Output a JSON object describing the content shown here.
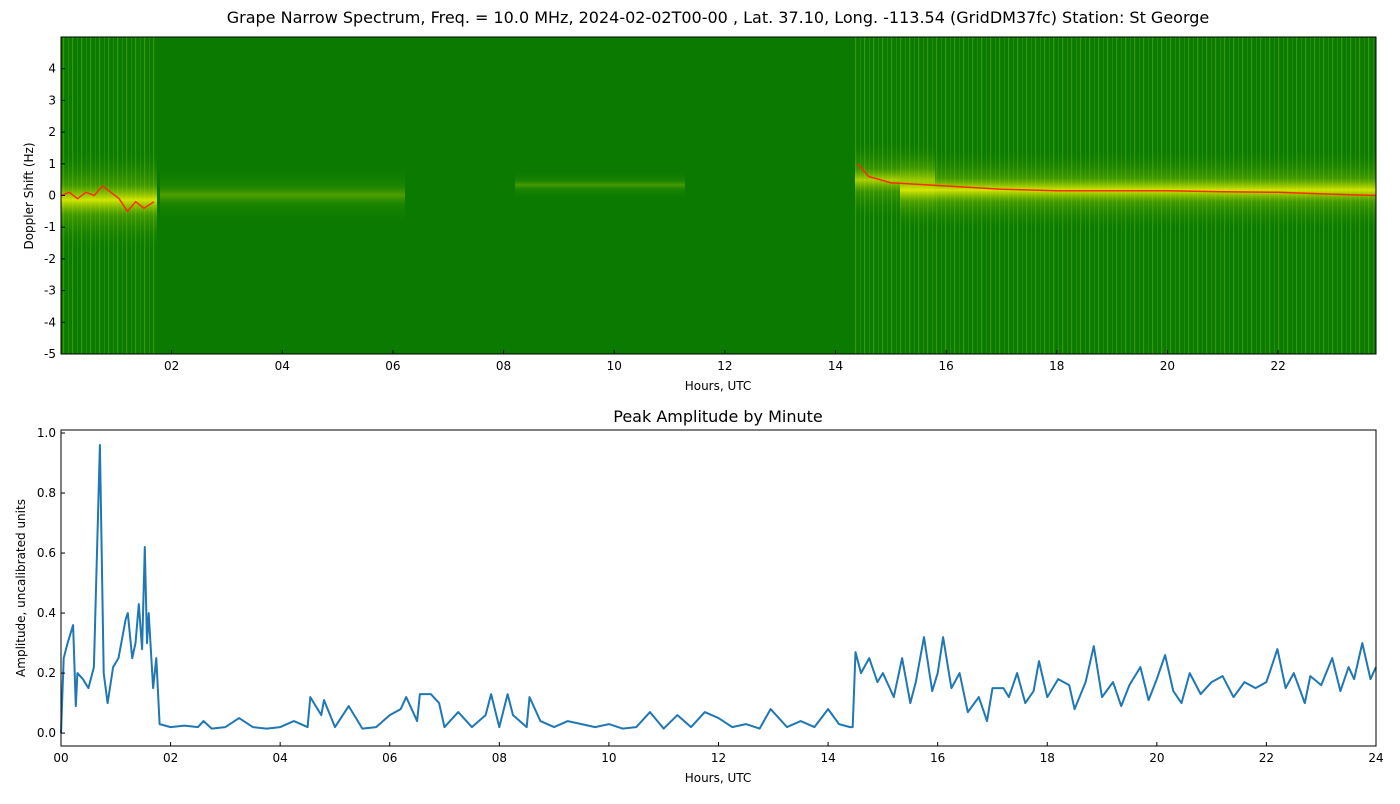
{
  "chart_data": [
    {
      "type": "spectrogram",
      "title": "Grape Narrow Spectrum, Freq. = 10.0 MHz, 2024-02-02T00-00 , Lat.  37.10, Long. -113.54 (GridDM37fc) Station: St George",
      "xlabel": "Hours, UTC",
      "ylabel": "Doppler Shift (Hz)",
      "xlim": [
        0,
        23.77
      ],
      "ylim": [
        -5,
        5
      ],
      "xticks": [
        {
          "value": 2,
          "label": "02"
        },
        {
          "value": 4,
          "label": "04"
        },
        {
          "value": 6,
          "label": "06"
        },
        {
          "value": 8,
          "label": "08"
        },
        {
          "value": 10,
          "label": "10"
        },
        {
          "value": 12,
          "label": "12"
        },
        {
          "value": 14,
          "label": "14"
        },
        {
          "value": 16,
          "label": "16"
        },
        {
          "value": 18,
          "label": "18"
        },
        {
          "value": 20,
          "label": "20"
        },
        {
          "value": 22,
          "label": "22"
        }
      ],
      "yticks": [
        -5,
        -4,
        -3,
        -2,
        -1,
        0,
        1,
        2,
        3,
        4
      ],
      "color": "#ff2a00",
      "x": [
        0.0,
        0.15,
        0.3,
        0.45,
        0.6,
        0.75,
        0.9,
        1.05,
        1.2,
        1.35,
        1.5,
        1.68,
        14.4,
        14.6,
        15.0,
        15.5,
        16.0,
        16.5,
        17.0,
        18.0,
        19.0,
        20.0,
        21.0,
        22.0,
        22.8,
        23.77
      ],
      "values": [
        0.0,
        0.1,
        -0.1,
        0.1,
        0.0,
        0.3,
        0.1,
        -0.1,
        -0.5,
        -0.2,
        -0.4,
        -0.2,
        1.0,
        0.6,
        0.4,
        0.35,
        0.3,
        0.25,
        0.2,
        0.15,
        0.15,
        0.15,
        0.12,
        0.1,
        0.05,
        0.0
      ]
    },
    {
      "type": "line",
      "title": "Peak Amplitude by Minute",
      "xlabel": "Hours, UTC",
      "ylabel": "Amplitude, uncalibrated units",
      "xlim": [
        0,
        24
      ],
      "ylim": [
        -0.043,
        1.01
      ],
      "xticks": [
        {
          "value": 0,
          "label": "00"
        },
        {
          "value": 2,
          "label": "02"
        },
        {
          "value": 4,
          "label": "04"
        },
        {
          "value": 6,
          "label": "06"
        },
        {
          "value": 8,
          "label": "08"
        },
        {
          "value": 10,
          "label": "10"
        },
        {
          "value": 12,
          "label": "12"
        },
        {
          "value": 14,
          "label": "14"
        },
        {
          "value": 16,
          "label": "16"
        },
        {
          "value": 18,
          "label": "18"
        },
        {
          "value": 20,
          "label": "20"
        },
        {
          "value": 22,
          "label": "22"
        },
        {
          "value": 24,
          "label": "24"
        }
      ],
      "yticks": [
        {
          "value": 0,
          "label": "0.0"
        },
        0.2,
        0.4,
        0.6,
        0.8,
        {
          "value": 1,
          "label": "1.0"
        }
      ],
      "color": "#1f77b4",
      "x": [
        0,
        0.05,
        0.12,
        0.22,
        0.27,
        0.3,
        0.4,
        0.5,
        0.6,
        0.71,
        0.78,
        0.85,
        0.95,
        1.05,
        1.18,
        1.22,
        1.3,
        1.36,
        1.42,
        1.48,
        1.53,
        1.57,
        1.6,
        1.68,
        1.74,
        1.8,
        2.0,
        2.25,
        2.5,
        2.6,
        2.75,
        3.0,
        3.25,
        3.5,
        3.75,
        4.0,
        4.25,
        4.5,
        4.55,
        4.75,
        4.8,
        5.0,
        5.25,
        5.5,
        5.75,
        6.0,
        6.2,
        6.3,
        6.5,
        6.55,
        6.75,
        6.9,
        7.0,
        7.25,
        7.5,
        7.75,
        7.85,
        8.0,
        8.15,
        8.25,
        8.5,
        8.55,
        8.75,
        9.0,
        9.25,
        9.5,
        9.75,
        10.0,
        10.25,
        10.5,
        10.75,
        11.0,
        11.25,
        11.5,
        11.75,
        12.0,
        12.25,
        12.5,
        12.75,
        12.95,
        13.25,
        13.5,
        13.75,
        14.0,
        14.2,
        14.4,
        14.45,
        14.5,
        14.6,
        14.75,
        14.9,
        15.0,
        15.2,
        15.35,
        15.5,
        15.6,
        15.75,
        15.9,
        16.0,
        16.1,
        16.25,
        16.4,
        16.55,
        16.75,
        16.9,
        17.0,
        17.2,
        17.3,
        17.45,
        17.6,
        17.75,
        17.85,
        18.0,
        18.2,
        18.4,
        18.5,
        18.7,
        18.85,
        19.0,
        19.2,
        19.35,
        19.5,
        19.7,
        19.85,
        20.0,
        20.15,
        20.3,
        20.45,
        20.6,
        20.8,
        21.0,
        21.2,
        21.4,
        21.6,
        21.8,
        22.0,
        22.2,
        22.35,
        22.5,
        22.7,
        22.8,
        23.0,
        23.2,
        23.35,
        23.5,
        23.6,
        23.75,
        23.9,
        24.0
      ],
      "values": [
        0.0,
        0.25,
        0.3,
        0.36,
        0.09,
        0.2,
        0.18,
        0.15,
        0.22,
        0.96,
        0.2,
        0.1,
        0.22,
        0.25,
        0.38,
        0.4,
        0.25,
        0.3,
        0.43,
        0.28,
        0.62,
        0.3,
        0.4,
        0.15,
        0.25,
        0.03,
        0.02,
        0.025,
        0.02,
        0.04,
        0.015,
        0.02,
        0.05,
        0.02,
        0.015,
        0.02,
        0.04,
        0.02,
        0.12,
        0.06,
        0.11,
        0.02,
        0.09,
        0.015,
        0.02,
        0.06,
        0.08,
        0.12,
        0.04,
        0.13,
        0.13,
        0.1,
        0.02,
        0.07,
        0.02,
        0.06,
        0.13,
        0.02,
        0.13,
        0.06,
        0.02,
        0.12,
        0.04,
        0.02,
        0.04,
        0.03,
        0.02,
        0.03,
        0.015,
        0.02,
        0.07,
        0.015,
        0.06,
        0.02,
        0.07,
        0.05,
        0.02,
        0.03,
        0.015,
        0.08,
        0.02,
        0.04,
        0.02,
        0.08,
        0.03,
        0.02,
        0.02,
        0.27,
        0.2,
        0.25,
        0.17,
        0.2,
        0.12,
        0.25,
        0.1,
        0.17,
        0.32,
        0.14,
        0.2,
        0.32,
        0.15,
        0.2,
        0.07,
        0.12,
        0.04,
        0.15,
        0.15,
        0.12,
        0.2,
        0.1,
        0.14,
        0.24,
        0.12,
        0.18,
        0.16,
        0.08,
        0.17,
        0.29,
        0.12,
        0.17,
        0.09,
        0.16,
        0.22,
        0.11,
        0.18,
        0.26,
        0.14,
        0.1,
        0.2,
        0.13,
        0.17,
        0.19,
        0.12,
        0.17,
        0.15,
        0.17,
        0.28,
        0.15,
        0.2,
        0.1,
        0.19,
        0.16,
        0.25,
        0.14,
        0.22,
        0.18,
        0.3,
        0.18,
        0.22
      ]
    }
  ]
}
